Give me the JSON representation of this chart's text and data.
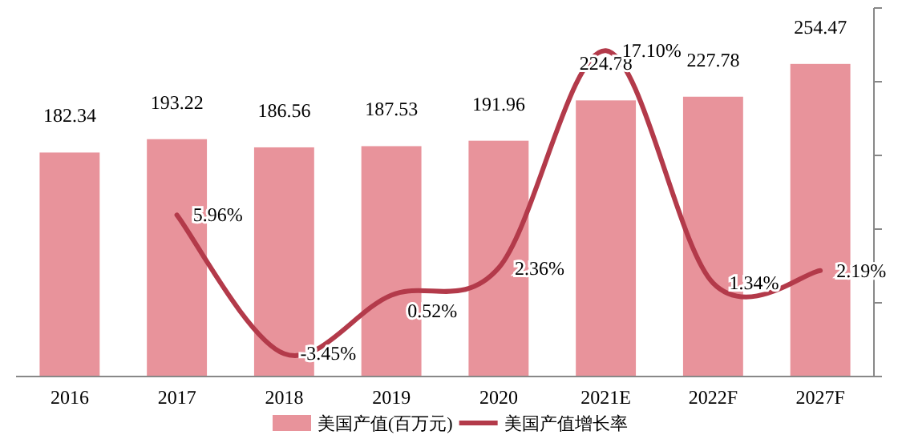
{
  "chart_data": {
    "type": "bar",
    "categories": [
      "2016",
      "2017",
      "2018",
      "2019",
      "2020",
      "2021E",
      "2022F",
      "2027F"
    ],
    "series": [
      {
        "name": "美国产值(百万元)",
        "color": "#e8939b",
        "values": [
          182.34,
          193.22,
          186.56,
          187.53,
          191.96,
          224.78,
          227.78,
          254.47
        ]
      },
      {
        "name": "美国产值增长率",
        "type": "line",
        "axis": "y2",
        "color": "#b33a4a",
        "values": [
          null,
          5.96,
          -3.45,
          0.52,
          2.36,
          17.1,
          1.34,
          2.19
        ],
        "value_labels": [
          null,
          "5.96%",
          "-3.45%",
          "0.52%",
          "2.36%",
          "17.10%",
          "1.34%",
          "2.19%"
        ]
      }
    ],
    "ylim": [
      0,
      300
    ],
    "y2lim": [
      -5,
      20
    ],
    "y2ticks": [
      {
        "value": -5,
        "label": null
      },
      {
        "value": 0,
        "label": null
      },
      {
        "value": 5,
        "label": null
      },
      {
        "value": 10,
        "label": null
      },
      {
        "value": 15,
        "label": null
      },
      {
        "value": 20,
        "label": null
      }
    ],
    "tick_labels": "x",
    "data_labels": true,
    "legend": "bottom",
    "grid": false,
    "marker": "none",
    "line_style": "solid"
  }
}
